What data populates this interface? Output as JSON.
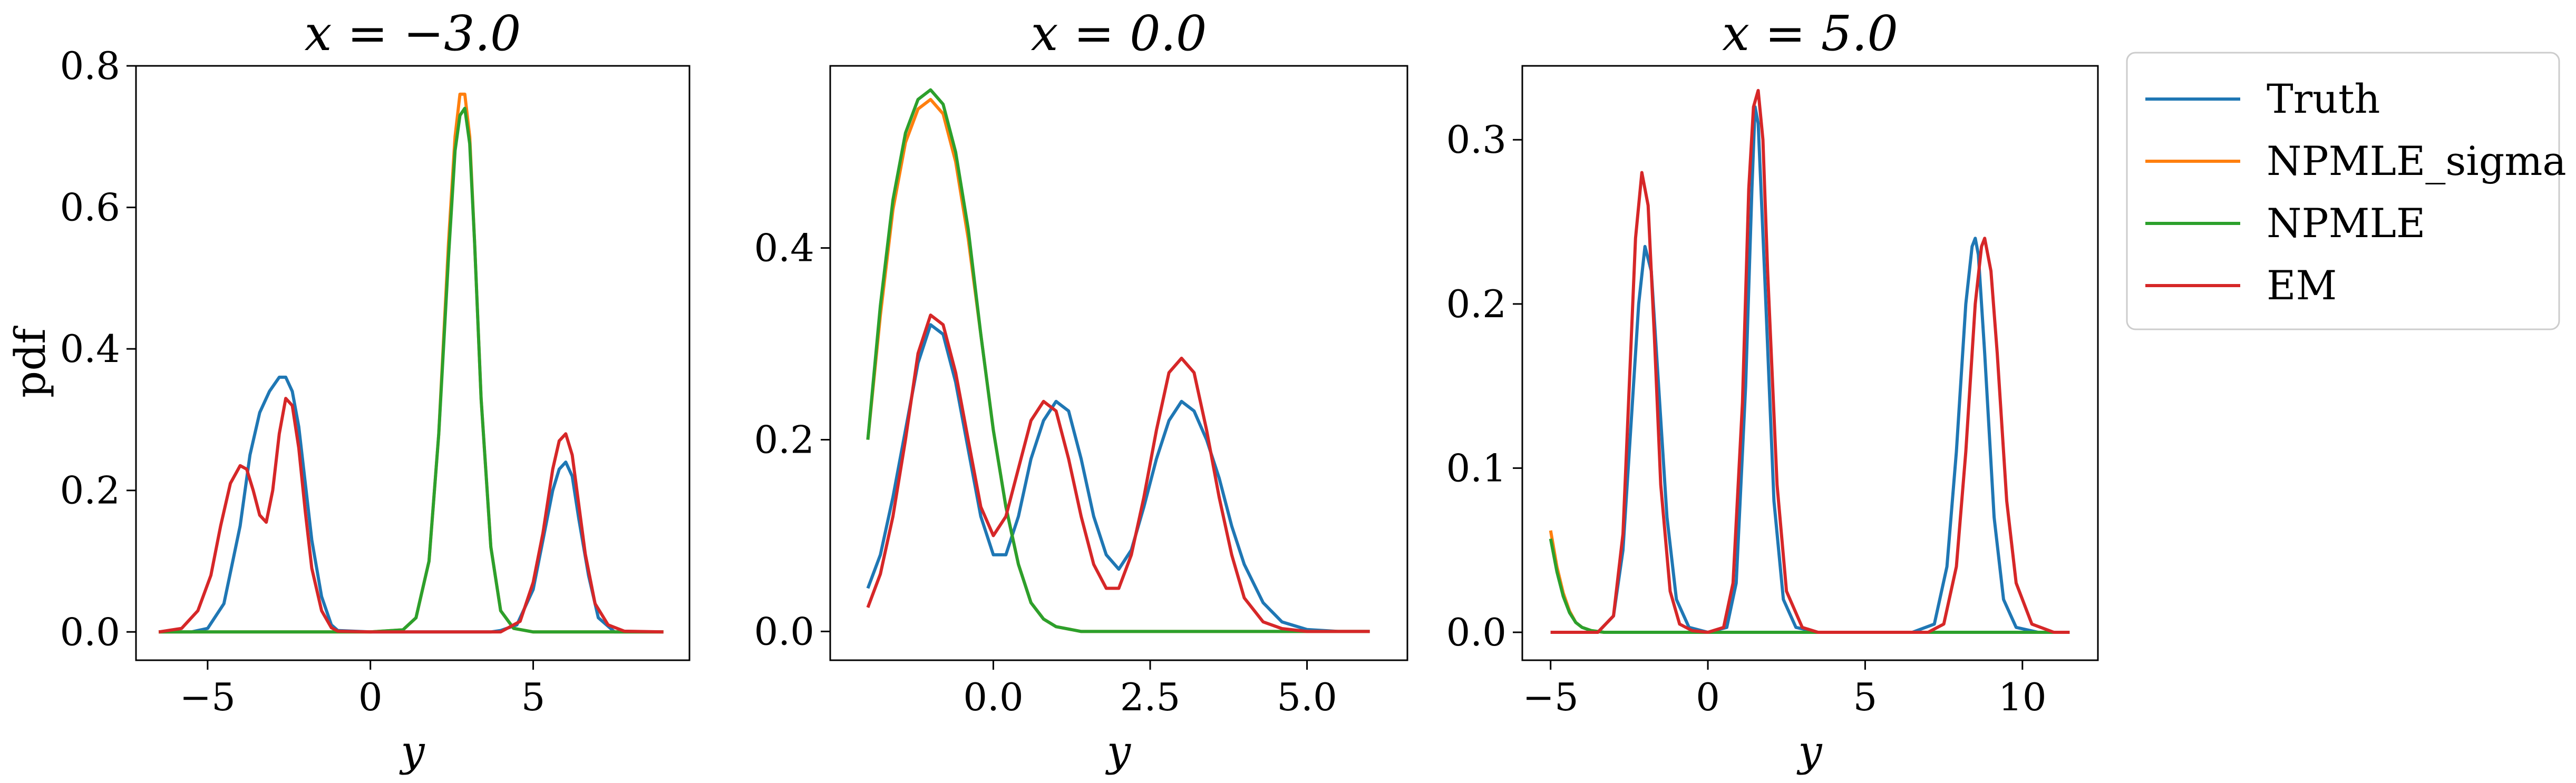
{
  "figure": {
    "legend": {
      "placement": "outside-right-top",
      "entries": [
        {
          "label": "Truth",
          "color": "#1f77b4"
        },
        {
          "label": "NPMLE_sigma",
          "color": "#ff7f0e"
        },
        {
          "label": "NPMLE",
          "color": "#2ca02c"
        },
        {
          "label": "EM",
          "color": "#d62728"
        }
      ]
    }
  },
  "chart_data": [
    {
      "type": "line",
      "title": "x = −3.0",
      "xlabel": "y",
      "ylabel": "pdf",
      "xlim": [
        -7.2,
        9.8
      ],
      "ylim": [
        -0.04,
        0.8
      ],
      "xticks": [
        -5,
        0,
        5
      ],
      "xtick_labels": [
        "−5",
        "0",
        "5"
      ],
      "yticks": [
        0.0,
        0.2,
        0.4,
        0.6,
        0.8
      ],
      "ytick_labels": [
        "0.0",
        "0.2",
        "0.4",
        "0.6",
        "0.8"
      ],
      "grid": false,
      "series": [
        {
          "name": "Truth",
          "color": "#1f77b4",
          "x": [
            -6.5,
            -5.5,
            -5.0,
            -4.5,
            -4.0,
            -3.7,
            -3.4,
            -3.1,
            -2.8,
            -2.6,
            -2.4,
            -2.2,
            -2.0,
            -1.8,
            -1.5,
            -1.2,
            -1.0,
            0.0,
            1.0,
            2.0,
            3.0,
            3.7,
            4.0,
            4.5,
            5.0,
            5.3,
            5.6,
            5.8,
            6.0,
            6.2,
            6.4,
            6.7,
            7.0,
            7.5,
            9.0
          ],
          "y": [
            0.0,
            0.0,
            0.005,
            0.04,
            0.15,
            0.25,
            0.31,
            0.34,
            0.36,
            0.36,
            0.34,
            0.29,
            0.21,
            0.13,
            0.05,
            0.01,
            0.002,
            0.0,
            0.0,
            0.0,
            0.0,
            0.0,
            0.002,
            0.01,
            0.06,
            0.13,
            0.2,
            0.23,
            0.24,
            0.22,
            0.16,
            0.08,
            0.02,
            0.0,
            0.0
          ]
        },
        {
          "name": "NPMLE_sigma",
          "color": "#ff7f0e",
          "x": [
            -6.5,
            0.0,
            1.0,
            1.4,
            1.8,
            2.1,
            2.4,
            2.6,
            2.75,
            2.9,
            3.05,
            3.2,
            3.4,
            3.7,
            4.0,
            4.4,
            5.0,
            9.0
          ],
          "y": [
            0.0,
            0.0,
            0.003,
            0.02,
            0.1,
            0.28,
            0.55,
            0.7,
            0.76,
            0.76,
            0.7,
            0.55,
            0.33,
            0.12,
            0.03,
            0.005,
            0.0,
            0.0
          ]
        },
        {
          "name": "NPMLE",
          "color": "#2ca02c",
          "x": [
            -6.5,
            0.0,
            1.0,
            1.4,
            1.8,
            2.1,
            2.4,
            2.6,
            2.75,
            2.9,
            3.05,
            3.2,
            3.4,
            3.7,
            4.0,
            4.4,
            5.0,
            9.0
          ],
          "y": [
            0.0,
            0.0,
            0.003,
            0.02,
            0.1,
            0.28,
            0.53,
            0.68,
            0.73,
            0.74,
            0.69,
            0.55,
            0.33,
            0.12,
            0.03,
            0.005,
            0.0,
            0.0
          ]
        },
        {
          "name": "EM",
          "color": "#d62728",
          "x": [
            -6.5,
            -5.8,
            -5.3,
            -4.9,
            -4.6,
            -4.3,
            -4.0,
            -3.8,
            -3.6,
            -3.4,
            -3.2,
            -3.0,
            -2.8,
            -2.6,
            -2.4,
            -2.2,
            -2.0,
            -1.8,
            -1.5,
            -1.2,
            -1.0,
            0.0,
            4.0,
            4.6,
            5.0,
            5.3,
            5.6,
            5.8,
            6.0,
            6.2,
            6.4,
            6.6,
            6.9,
            7.3,
            7.8,
            9.0
          ],
          "y": [
            0.0,
            0.005,
            0.03,
            0.08,
            0.15,
            0.21,
            0.235,
            0.23,
            0.2,
            0.165,
            0.155,
            0.2,
            0.28,
            0.33,
            0.32,
            0.26,
            0.17,
            0.09,
            0.03,
            0.006,
            0.001,
            0.0,
            0.0,
            0.015,
            0.07,
            0.14,
            0.23,
            0.27,
            0.28,
            0.25,
            0.18,
            0.11,
            0.04,
            0.01,
            0.001,
            0.0
          ]
        }
      ]
    },
    {
      "type": "line",
      "title": "x = 0.0",
      "xlabel": "y",
      "ylabel": "",
      "xlim": [
        -2.6,
        6.6
      ],
      "ylim": [
        -0.03,
        0.59
      ],
      "xticks": [
        0.0,
        2.5,
        5.0
      ],
      "xtick_labels": [
        "0.0",
        "2.5",
        "5.0"
      ],
      "yticks": [
        0.0,
        0.2,
        0.4
      ],
      "ytick_labels": [
        "0.0",
        "0.2",
        "0.4"
      ],
      "grid": false,
      "series": [
        {
          "name": "Truth",
          "color": "#1f77b4",
          "x": [
            -2.0,
            -1.8,
            -1.6,
            -1.4,
            -1.2,
            -1.0,
            -0.8,
            -0.6,
            -0.4,
            -0.2,
            0.0,
            0.2,
            0.4,
            0.6,
            0.8,
            1.0,
            1.2,
            1.4,
            1.6,
            1.8,
            2.0,
            2.2,
            2.4,
            2.6,
            2.8,
            3.0,
            3.2,
            3.4,
            3.6,
            3.8,
            4.0,
            4.3,
            4.6,
            5.0,
            5.5,
            6.0
          ],
          "y": [
            0.045,
            0.08,
            0.14,
            0.21,
            0.28,
            0.32,
            0.31,
            0.26,
            0.19,
            0.12,
            0.08,
            0.08,
            0.12,
            0.18,
            0.22,
            0.24,
            0.23,
            0.18,
            0.12,
            0.08,
            0.065,
            0.085,
            0.13,
            0.18,
            0.22,
            0.24,
            0.23,
            0.2,
            0.16,
            0.11,
            0.07,
            0.03,
            0.01,
            0.002,
            0.0,
            0.0
          ]
        },
        {
          "name": "NPMLE_sigma",
          "color": "#ff7f0e",
          "x": [
            -2.0,
            -1.8,
            -1.6,
            -1.4,
            -1.2,
            -1.0,
            -0.8,
            -0.6,
            -0.4,
            -0.2,
            0.0,
            0.2,
            0.4,
            0.6,
            0.8,
            1.0,
            1.4,
            2.0,
            6.0
          ],
          "y": [
            0.2,
            0.33,
            0.44,
            0.51,
            0.545,
            0.555,
            0.54,
            0.49,
            0.41,
            0.31,
            0.21,
            0.13,
            0.07,
            0.03,
            0.013,
            0.005,
            0.0,
            0.0,
            0.0
          ]
        },
        {
          "name": "NPMLE",
          "color": "#2ca02c",
          "x": [
            -2.0,
            -1.8,
            -1.6,
            -1.4,
            -1.2,
            -1.0,
            -0.8,
            -0.6,
            -0.4,
            -0.2,
            0.0,
            0.2,
            0.4,
            0.6,
            0.8,
            1.0,
            1.4,
            2.0,
            6.0
          ],
          "y": [
            0.2,
            0.34,
            0.45,
            0.52,
            0.555,
            0.565,
            0.55,
            0.5,
            0.42,
            0.31,
            0.21,
            0.13,
            0.07,
            0.03,
            0.013,
            0.005,
            0.0,
            0.0,
            0.0
          ]
        },
        {
          "name": "EM",
          "color": "#d62728",
          "x": [
            -2.0,
            -1.8,
            -1.6,
            -1.4,
            -1.2,
            -1.0,
            -0.8,
            -0.6,
            -0.4,
            -0.2,
            0.0,
            0.2,
            0.4,
            0.6,
            0.8,
            1.0,
            1.2,
            1.4,
            1.6,
            1.8,
            2.0,
            2.2,
            2.4,
            2.6,
            2.8,
            3.0,
            3.2,
            3.4,
            3.6,
            3.8,
            4.0,
            4.3,
            4.6,
            5.0,
            6.0
          ],
          "y": [
            0.025,
            0.06,
            0.12,
            0.2,
            0.29,
            0.33,
            0.32,
            0.27,
            0.2,
            0.13,
            0.1,
            0.12,
            0.17,
            0.22,
            0.24,
            0.23,
            0.18,
            0.12,
            0.07,
            0.045,
            0.045,
            0.08,
            0.14,
            0.21,
            0.27,
            0.285,
            0.27,
            0.21,
            0.14,
            0.08,
            0.035,
            0.01,
            0.003,
            0.0,
            0.0
          ]
        }
      ]
    },
    {
      "type": "line",
      "title": "x = 5.0",
      "xlabel": "y",
      "ylabel": "",
      "xlim": [
        -5.9,
        12.4
      ],
      "ylim": [
        -0.017,
        0.345
      ],
      "xticks": [
        -5,
        0,
        5,
        10
      ],
      "xtick_labels": [
        "−5",
        "0",
        "5",
        "10"
      ],
      "yticks": [
        0.0,
        0.1,
        0.2,
        0.3
      ],
      "ytick_labels": [
        "0.0",
        "0.1",
        "0.2",
        "0.3"
      ],
      "grid": false,
      "series": [
        {
          "name": "Truth",
          "color": "#1f77b4",
          "x": [
            -5.0,
            -3.5,
            -3.0,
            -2.7,
            -2.4,
            -2.2,
            -2.0,
            -1.8,
            -1.6,
            -1.3,
            -1.0,
            -0.6,
            0.0,
            0.6,
            0.9,
            1.2,
            1.4,
            1.5,
            1.6,
            1.8,
            2.1,
            2.4,
            2.8,
            3.5,
            6.5,
            7.2,
            7.6,
            7.9,
            8.2,
            8.4,
            8.5,
            8.6,
            8.8,
            9.1,
            9.4,
            9.8,
            10.5,
            11.5
          ],
          "y": [
            0.0,
            0.0,
            0.01,
            0.05,
            0.14,
            0.2,
            0.235,
            0.22,
            0.16,
            0.07,
            0.02,
            0.003,
            0.0,
            0.003,
            0.03,
            0.15,
            0.27,
            0.32,
            0.31,
            0.22,
            0.08,
            0.02,
            0.003,
            0.0,
            0.0,
            0.005,
            0.04,
            0.11,
            0.2,
            0.235,
            0.24,
            0.23,
            0.17,
            0.07,
            0.02,
            0.003,
            0.0,
            0.0
          ]
        },
        {
          "name": "NPMLE_sigma",
          "color": "#ff7f0e",
          "x": [
            -5.0,
            -4.8,
            -4.6,
            -4.4,
            -4.2,
            -4.0,
            -3.7,
            -3.3,
            -2.5,
            0.0,
            11.5
          ],
          "y": [
            0.062,
            0.04,
            0.024,
            0.013,
            0.006,
            0.003,
            0.001,
            0.0,
            0.0,
            0.0,
            0.0
          ]
        },
        {
          "name": "NPMLE",
          "color": "#2ca02c",
          "x": [
            -5.0,
            -4.8,
            -4.6,
            -4.4,
            -4.2,
            -4.0,
            -3.7,
            -3.3,
            -2.5,
            0.0,
            11.5
          ],
          "y": [
            0.057,
            0.037,
            0.022,
            0.012,
            0.006,
            0.003,
            0.001,
            0.0,
            0.0,
            0.0,
            0.0
          ]
        },
        {
          "name": "EM",
          "color": "#d62728",
          "x": [
            -5.0,
            -3.5,
            -3.0,
            -2.7,
            -2.5,
            -2.3,
            -2.1,
            -1.9,
            -1.7,
            -1.5,
            -1.2,
            -0.9,
            -0.5,
            0.0,
            0.5,
            0.8,
            1.1,
            1.3,
            1.45,
            1.6,
            1.75,
            1.9,
            2.2,
            2.5,
            3.0,
            3.5,
            7.0,
            7.5,
            7.9,
            8.2,
            8.5,
            8.7,
            8.8,
            9.0,
            9.2,
            9.5,
            9.8,
            10.3,
            11.0,
            11.5
          ],
          "y": [
            0.0,
            0.0,
            0.01,
            0.06,
            0.15,
            0.24,
            0.28,
            0.26,
            0.18,
            0.09,
            0.025,
            0.005,
            0.001,
            0.0,
            0.003,
            0.03,
            0.14,
            0.27,
            0.32,
            0.33,
            0.3,
            0.22,
            0.09,
            0.025,
            0.003,
            0.0,
            0.0,
            0.005,
            0.04,
            0.11,
            0.2,
            0.235,
            0.24,
            0.22,
            0.17,
            0.08,
            0.03,
            0.005,
            0.0,
            0.0
          ]
        }
      ]
    }
  ]
}
